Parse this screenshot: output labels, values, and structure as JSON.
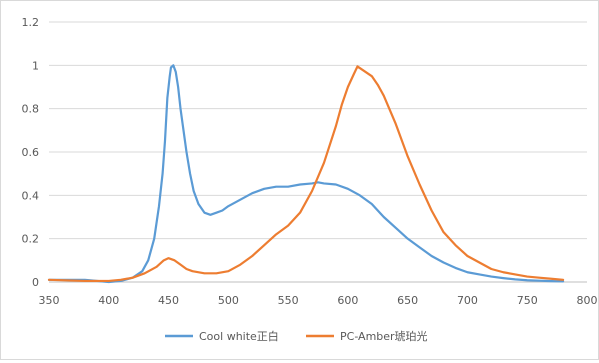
{
  "chart_data": {
    "type": "line",
    "title": "",
    "xlabel": "",
    "ylabel": "",
    "xlim": [
      350,
      800
    ],
    "ylim": [
      0,
      1.2
    ],
    "x_ticks": [
      "350",
      "400",
      "450",
      "500",
      "550",
      "600",
      "650",
      "700",
      "750",
      "800"
    ],
    "y_ticks": [
      "0",
      "0.2",
      "0.4",
      "0.6",
      "0.8",
      "1",
      "1.2"
    ],
    "grid": "horizontal",
    "legend_position": "bottom",
    "series": [
      {
        "name": "Cool white正白",
        "color": "#5b9bd5",
        "points": [
          [
            350,
            0.01
          ],
          [
            380,
            0.01
          ],
          [
            400,
            0.0
          ],
          [
            410,
            0.005
          ],
          [
            420,
            0.02
          ],
          [
            428,
            0.05
          ],
          [
            433,
            0.1
          ],
          [
            438,
            0.2
          ],
          [
            442,
            0.35
          ],
          [
            445,
            0.5
          ],
          [
            447,
            0.65
          ],
          [
            449,
            0.85
          ],
          [
            451,
            0.95
          ],
          [
            452,
            0.99
          ],
          [
            454,
            1.0
          ],
          [
            456,
            0.97
          ],
          [
            458,
            0.9
          ],
          [
            460,
            0.8
          ],
          [
            462,
            0.72
          ],
          [
            465,
            0.6
          ],
          [
            468,
            0.5
          ],
          [
            471,
            0.42
          ],
          [
            475,
            0.36
          ],
          [
            480,
            0.32
          ],
          [
            485,
            0.31
          ],
          [
            490,
            0.32
          ],
          [
            495,
            0.33
          ],
          [
            500,
            0.35
          ],
          [
            510,
            0.38
          ],
          [
            520,
            0.41
          ],
          [
            530,
            0.43
          ],
          [
            540,
            0.44
          ],
          [
            550,
            0.44
          ],
          [
            560,
            0.45
          ],
          [
            570,
            0.455
          ],
          [
            575,
            0.46
          ],
          [
            580,
            0.455
          ],
          [
            590,
            0.45
          ],
          [
            600,
            0.43
          ],
          [
            610,
            0.4
          ],
          [
            620,
            0.36
          ],
          [
            630,
            0.3
          ],
          [
            640,
            0.25
          ],
          [
            650,
            0.2
          ],
          [
            660,
            0.16
          ],
          [
            670,
            0.12
          ],
          [
            680,
            0.09
          ],
          [
            690,
            0.065
          ],
          [
            700,
            0.045
          ],
          [
            710,
            0.035
          ],
          [
            720,
            0.025
          ],
          [
            730,
            0.018
          ],
          [
            740,
            0.012
          ],
          [
            750,
            0.008
          ],
          [
            760,
            0.006
          ],
          [
            770,
            0.004
          ],
          [
            780,
            0.003
          ]
        ]
      },
      {
        "name": "PC-Amber琥珀光",
        "color": "#ed7d31",
        "points": [
          [
            350,
            0.01
          ],
          [
            380,
            0.005
          ],
          [
            400,
            0.005
          ],
          [
            410,
            0.01
          ],
          [
            420,
            0.02
          ],
          [
            430,
            0.04
          ],
          [
            440,
            0.07
          ],
          [
            446,
            0.1
          ],
          [
            450,
            0.11
          ],
          [
            455,
            0.1
          ],
          [
            460,
            0.08
          ],
          [
            465,
            0.06
          ],
          [
            470,
            0.05
          ],
          [
            480,
            0.04
          ],
          [
            490,
            0.04
          ],
          [
            500,
            0.05
          ],
          [
            510,
            0.08
          ],
          [
            520,
            0.12
          ],
          [
            530,
            0.17
          ],
          [
            540,
            0.22
          ],
          [
            550,
            0.26
          ],
          [
            560,
            0.32
          ],
          [
            570,
            0.42
          ],
          [
            580,
            0.55
          ],
          [
            590,
            0.72
          ],
          [
            595,
            0.82
          ],
          [
            600,
            0.9
          ],
          [
            605,
            0.96
          ],
          [
            608,
            0.995
          ],
          [
            612,
            0.98
          ],
          [
            620,
            0.95
          ],
          [
            625,
            0.91
          ],
          [
            630,
            0.86
          ],
          [
            640,
            0.73
          ],
          [
            650,
            0.58
          ],
          [
            660,
            0.45
          ],
          [
            670,
            0.33
          ],
          [
            680,
            0.23
          ],
          [
            690,
            0.17
          ],
          [
            700,
            0.12
          ],
          [
            710,
            0.09
          ],
          [
            720,
            0.06
          ],
          [
            730,
            0.045
          ],
          [
            740,
            0.035
          ],
          [
            750,
            0.025
          ],
          [
            760,
            0.02
          ],
          [
            770,
            0.015
          ],
          [
            780,
            0.01
          ]
        ]
      }
    ]
  }
}
